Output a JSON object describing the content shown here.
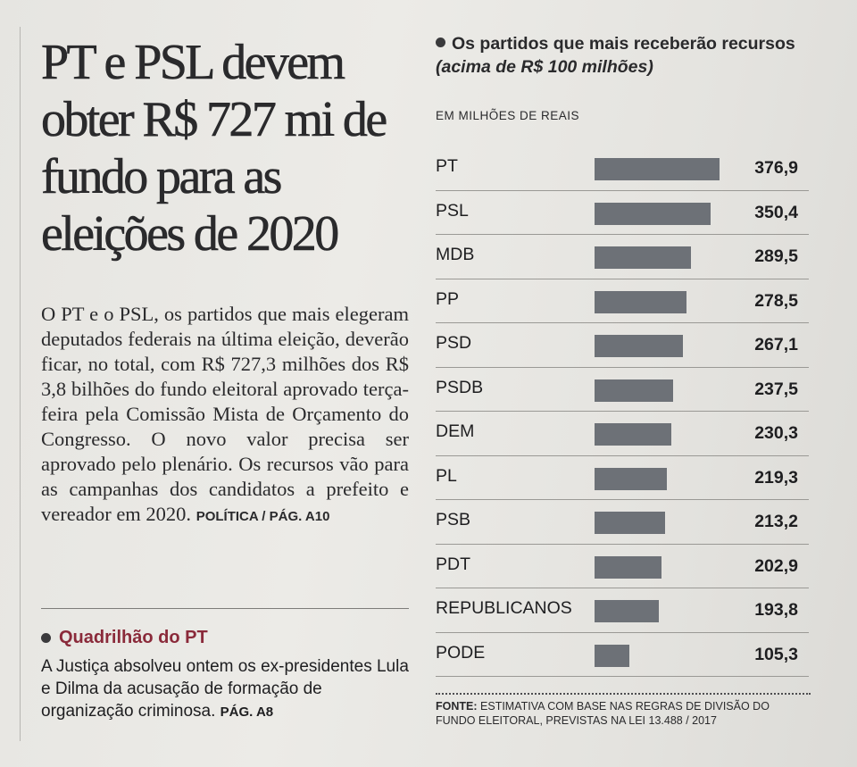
{
  "article": {
    "headline": "PT e PSL devem obter R$ 727 mi de fundo para as eleições de 2020",
    "body": "O PT e o PSL, os partidos que mais elegeram deputados federais na última eleição, deverão ficar, no total, com R$ 727,3 milhões dos R$ 3,8 bilhões do fundo eleitoral aprovado terça-feira pela Comissão Mista de Orçamento do Congresso. O novo valor precisa ser aprovado pelo plenário. Os recursos vão para as campanhas dos candidatos a prefeito e vereador em 2020.",
    "ref": "POLÍTICA / PÁG. A10"
  },
  "sidebar_news": {
    "title": "Quadrilhão do PT",
    "text": "A Justiça absolveu ontem os ex-presidentes Lula e Dilma da acusação de formação de organização criminosa.",
    "ref": "PÁG. A8"
  },
  "chart_header": {
    "title": "Os partidos que mais receberão recursos",
    "title_italic": "(acima de R$ 100 milhões)",
    "unit_label": "EM MILHÕES DE REAIS"
  },
  "chart_data": {
    "type": "bar",
    "orientation": "horizontal",
    "title": "Os partidos que mais receberão recursos (acima de R$ 100 milhões)",
    "ylabel": "EM MILHÕES DE REAIS",
    "categories": [
      "PT",
      "PSL",
      "MDB",
      "PP",
      "PSD",
      "PSDB",
      "DEM",
      "PL",
      "PSB",
      "PDT",
      "REPUBLICANOS",
      "PODE"
    ],
    "values": [
      376.9,
      350.4,
      289.5,
      278.5,
      267.1,
      237.5,
      230.3,
      219.3,
      213.2,
      202.9,
      193.8,
      105.3
    ],
    "value_labels": [
      "376,9",
      "350,4",
      "289,5",
      "278,5",
      "267,1",
      "237,5",
      "230,3",
      "219,3",
      "213,2",
      "202,9",
      "193,8",
      "105,3"
    ],
    "xlim": [
      0,
      376.9
    ],
    "bar_color": "#6d7177"
  },
  "source": {
    "label": "FONTE:",
    "text": "ESTIMATIVA COM BASE NAS REGRAS DE DIVISÃO DO FUNDO ELEITORAL, PREVISTAS NA LEI 13.488 / 2017"
  }
}
